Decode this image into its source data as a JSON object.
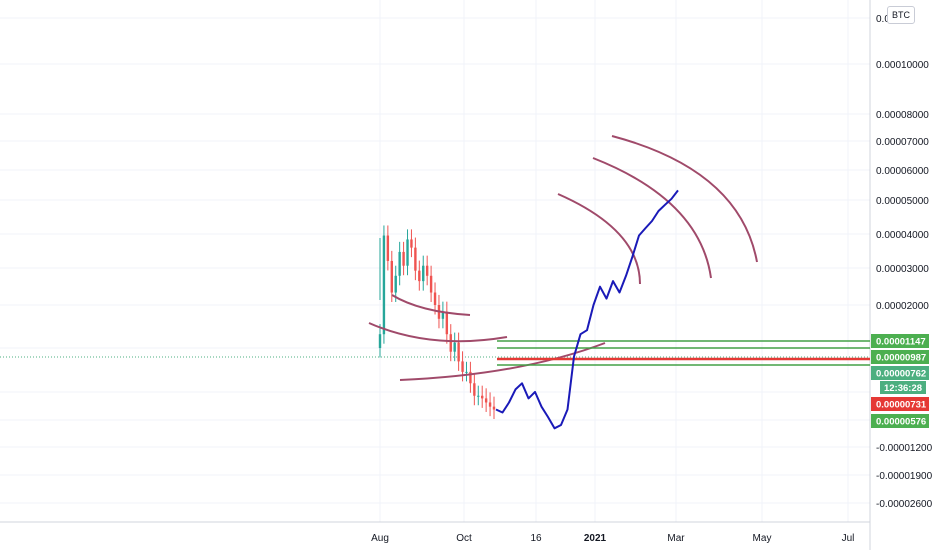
{
  "currency_badge": "BTC",
  "colors": {
    "up_candle": "#26a69a",
    "down_candle": "#ef5350",
    "projection_line": "#1a1ab8",
    "arc": "#a04a6a",
    "support_green": "#43a047",
    "resistance_red": "#e53935",
    "grid": "#f0f3fa",
    "axis_label_bg_green": "#4caf50",
    "axis_label_bg_red": "#e53935",
    "countdown_bg": "#4caf80"
  },
  "chart_data": {
    "type": "line",
    "title": "",
    "xlabel": "",
    "ylabel": "",
    "y_scale": "log",
    "x_ticks": [
      {
        "label": "Aug",
        "bold": false
      },
      {
        "label": "Oct",
        "bold": false
      },
      {
        "label": "16",
        "bold": false
      },
      {
        "label": "2021",
        "bold": true
      },
      {
        "label": "Mar",
        "bold": false
      },
      {
        "label": "May",
        "bold": false
      },
      {
        "label": "Jul",
        "bold": false
      }
    ],
    "y_ticks": [
      "0.00010000",
      "0.00008000",
      "0.00007000",
      "0.00006000",
      "0.00005000",
      "0.00004000",
      "0.00003000",
      "0.00002000",
      "-0.00001200",
      "-0.00001900",
      "-0.00002600"
    ],
    "y_tick_top_partial": "0.0",
    "horizontal_levels": [
      {
        "value": "0.00001147",
        "color": "green"
      },
      {
        "value": "0.00000987",
        "color": "green"
      },
      {
        "value": "0.00000762",
        "color": "green"
      },
      {
        "value": "0.00000731",
        "color": "red"
      },
      {
        "value": "0.00000576",
        "color": "green"
      }
    ],
    "countdown": "12:36:28",
    "price_series": [
      1.6e-05,
      3.4e-05,
      2.8e-05,
      2.2e-05,
      2.5e-05,
      3e-05,
      2.7e-05,
      3.3e-05,
      3.1e-05,
      2.6e-05,
      2.4e-05,
      2.7e-05,
      2.5e-05,
      2.2e-05,
      2e-05,
      1.8e-05,
      1.9e-05,
      1.6e-05,
      1.4e-05,
      1.5e-05,
      1.3e-05,
      1.2e-05,
      1.2e-05,
      1.1e-05,
      1e-05,
      1e-05,
      9.8e-06,
      9.5e-06,
      9.2e-06,
      9e-06
    ],
    "projection": [
      9e-06,
      8.8e-06,
      9.5e-06,
      1.05e-05,
      1.1e-05,
      9.8e-06,
      1.03e-05,
      9.2e-06,
      8.5e-06,
      7.8e-06,
      8e-06,
      9e-06,
      1.35e-05,
      1.6e-05,
      1.65e-05,
      2e-05,
      2.3e-05,
      2.1e-05,
      2.4e-05,
      2.2e-05,
      2.5e-05,
      2.9e-05,
      3.4e-05,
      3.6e-05,
      3.8e-05,
      4.1e-05,
      4.3e-05,
      4.5e-05,
      4.8e-05
    ]
  }
}
